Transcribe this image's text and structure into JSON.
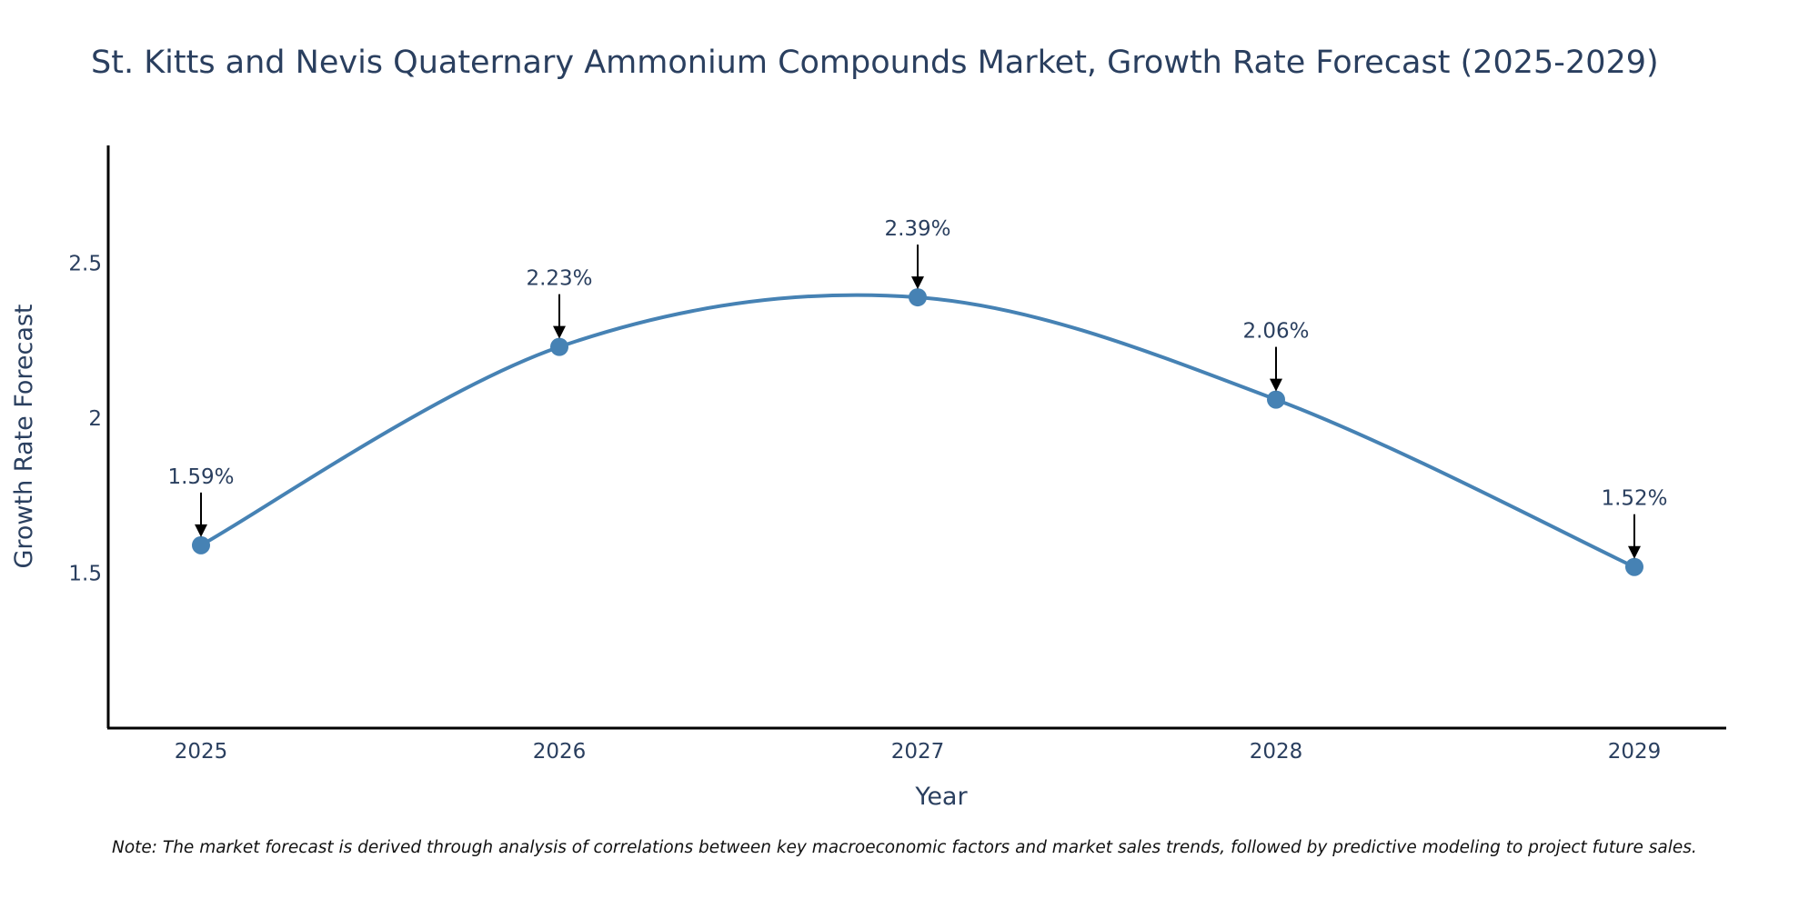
{
  "chart_data": {
    "type": "line",
    "title": "St. Kitts and Nevis Quaternary Ammonium Compounds Market, Growth Rate Forecast (2025-2029)",
    "xlabel": "Year",
    "ylabel": "Growth Rate Forecast",
    "x": [
      "2025",
      "2026",
      "2027",
      "2028",
      "2029"
    ],
    "values": [
      1.59,
      2.23,
      2.39,
      2.06,
      1.52
    ],
    "data_labels": [
      "1.59%",
      "2.23%",
      "2.39%",
      "2.06%",
      "1.52%"
    ],
    "y_ticks": [
      1.5,
      2,
      2.5
    ],
    "y_tick_labels": [
      "1.5",
      "2",
      "2.5"
    ],
    "ylim": [
      1.0,
      2.88
    ],
    "line_shape": "spline",
    "series_color": "#4682b4",
    "grid": false,
    "legend": "none",
    "note": "Note: The market forecast is derived through analysis of correlations between key macroeconomic factors and market sales trends, followed by predictive modeling to project future sales."
  }
}
